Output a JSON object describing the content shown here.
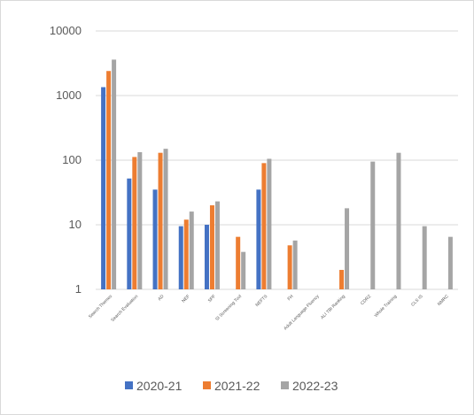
{
  "chart_data": {
    "type": "bar",
    "title": "",
    "xlabel": "",
    "ylabel": "",
    "yscale": "log",
    "ylim": [
      1,
      10000
    ],
    "yticks": [
      "1",
      "10",
      "100",
      "1000",
      "10000"
    ],
    "grid": "horizontal",
    "legend_position": "bottom",
    "categories": [
      "Search Themes",
      "Search Evaluation",
      "AD",
      "NEF",
      "SPF",
      "SI Screening Tool",
      "NEFTS",
      "FH",
      "Adult Language Fluency",
      "ALI TBI Ranking",
      "CDRZ",
      "Whole Training",
      "CLS IS",
      "NMRC"
    ],
    "series": [
      {
        "name": "2020-21",
        "color": "#4472C4",
        "values": [
          1350,
          52,
          35,
          9.5,
          10,
          null,
          35,
          null,
          null,
          null,
          null,
          null,
          null,
          null
        ]
      },
      {
        "name": "2021-22",
        "color": "#ED7D31",
        "values": [
          2400,
          112,
          130,
          12,
          20,
          6.5,
          90,
          4.8,
          null,
          2,
          null,
          null,
          null,
          null
        ]
      },
      {
        "name": "2022-23",
        "color": "#A5A5A5",
        "values": [
          3600,
          133,
          150,
          16,
          23,
          3.8,
          105,
          5.7,
          null,
          18,
          95,
          130,
          9.5,
          6.5
        ]
      }
    ]
  }
}
